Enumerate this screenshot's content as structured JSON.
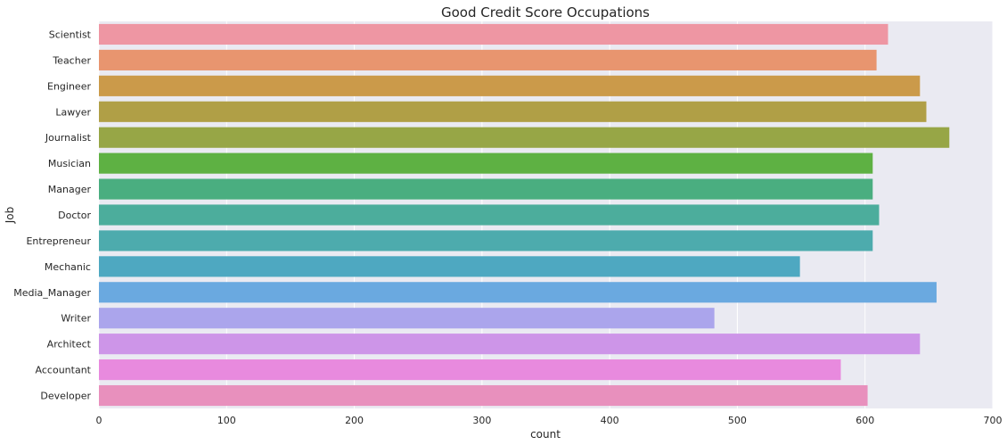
{
  "chart_data": {
    "type": "bar",
    "orientation": "horizontal",
    "title": "Good Credit Score Occupations",
    "xlabel": "count",
    "ylabel": "Job",
    "xlim": [
      0,
      700
    ],
    "xticks": [
      0,
      100,
      200,
      300,
      400,
      500,
      600,
      700
    ],
    "grid": true,
    "categories": [
      "Scientist",
      "Teacher",
      "Engineer",
      "Lawyer",
      "Journalist",
      "Musician",
      "Manager",
      "Doctor",
      "Entrepreneur",
      "Mechanic",
      "Media_Manager",
      "Writer",
      "Architect",
      "Accountant",
      "Developer"
    ],
    "values": [
      618,
      609,
      643,
      648,
      666,
      606,
      606,
      611,
      606,
      549,
      656,
      482,
      643,
      581,
      602
    ],
    "colors": [
      "#ee96a3",
      "#e8956f",
      "#cb9a4a",
      "#b09f46",
      "#97a646",
      "#5eb143",
      "#4aae80",
      "#4cad9c",
      "#4dabad",
      "#4ea8c1",
      "#6aa9e0",
      "#aba5ec",
      "#cd95e8",
      "#e88ade",
      "#e890bd"
    ]
  }
}
